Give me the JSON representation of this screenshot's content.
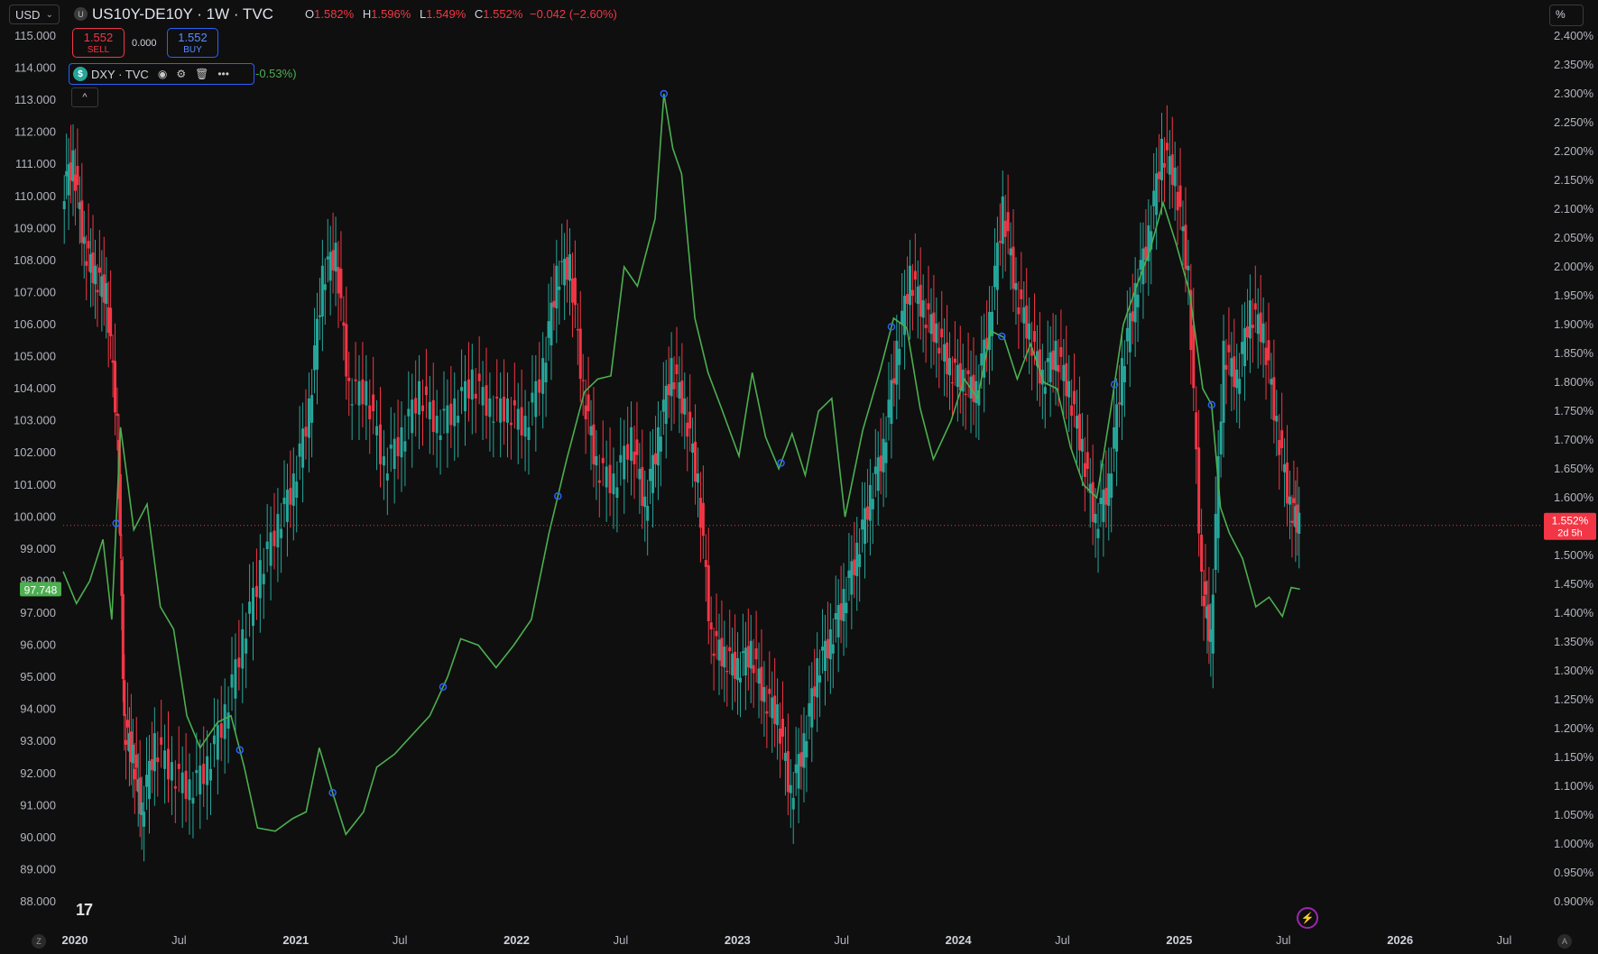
{
  "toolbar": {
    "currency": "USD",
    "scale_mode": "%"
  },
  "symbol": {
    "logo_letter": "U",
    "title": "US10Y-DE10Y · 1W · TVC",
    "ohlc": {
      "o_label": "O",
      "o": "1.582%",
      "h_label": "H",
      "h": "1.596%",
      "l_label": "L",
      "l": "1.549%",
      "c_label": "C",
      "c": "1.552%",
      "change": "−0.042 (−2.60%)"
    }
  },
  "trade": {
    "sell_price": "1.552",
    "sell_label": "SELL",
    "spread": "0.000",
    "buy_price": "1.552",
    "buy_label": "BUY"
  },
  "overlay_legend": {
    "icon": "$",
    "name": "DXY · TVC",
    "change_tail": "-0.53%)"
  },
  "bottom": {
    "z_label": "Z",
    "a_label": "A"
  },
  "colors": {
    "up": "#26a69a",
    "down": "#f23645",
    "dxy_line": "#4caf50",
    "bg": "#0f0f0f",
    "marker": "#2962ff"
  },
  "chart_data": {
    "type": "candlestick+line",
    "left_axis": {
      "ticks": [
        "115.000",
        "114.000",
        "113.000",
        "112.000",
        "111.000",
        "110.000",
        "109.000",
        "108.000",
        "107.000",
        "106.000",
        "105.000",
        "104.000",
        "103.000",
        "102.000",
        "101.000",
        "100.000",
        "99.000",
        "98.000",
        "97.000",
        "96.000",
        "95.000",
        "94.000",
        "93.000",
        "92.000",
        "91.000",
        "90.000",
        "89.000",
        "88.000"
      ],
      "range": [
        88,
        115
      ],
      "last_value_label": "97.748"
    },
    "right_axis": {
      "ticks": [
        "2.400%",
        "2.350%",
        "2.300%",
        "2.250%",
        "2.200%",
        "2.150%",
        "2.100%",
        "2.050%",
        "2.000%",
        "1.950%",
        "1.900%",
        "1.850%",
        "1.800%",
        "1.750%",
        "1.700%",
        "1.650%",
        "1.600%",
        "1.550%",
        "1.500%",
        "1.450%",
        "1.400%",
        "1.350%",
        "1.300%",
        "1.250%",
        "1.200%",
        "1.150%",
        "1.100%",
        "1.050%",
        "1.000%",
        "0.950%",
        "0.900%"
      ],
      "range": [
        0.9,
        2.4
      ],
      "last_value_label": "1.552%",
      "countdown": "2d 5h"
    },
    "x_axis": {
      "ticks": [
        "2020",
        "Jul",
        "2021",
        "Jul",
        "2022",
        "Jul",
        "2023",
        "Jul",
        "2024",
        "Jul",
        "2025",
        "Jul",
        "2026",
        "Jul"
      ],
      "start": 2020.0,
      "end": 2026.7
    },
    "last_price_line": 1.552,
    "series": [
      {
        "name": "US10Y-DE10Y",
        "kind": "candles",
        "points": [
          [
            2020.0,
            2.12
          ],
          [
            2020.05,
            2.18
          ],
          [
            2020.1,
            2.03
          ],
          [
            2020.15,
            1.98
          ],
          [
            2020.2,
            1.95
          ],
          [
            2020.25,
            1.72
          ],
          [
            2020.28,
            1.2
          ],
          [
            2020.32,
            1.15
          ],
          [
            2020.36,
            1.05
          ],
          [
            2020.42,
            1.17
          ],
          [
            2020.5,
            1.12
          ],
          [
            2020.58,
            1.09
          ],
          [
            2020.66,
            1.13
          ],
          [
            2020.74,
            1.22
          ],
          [
            2020.82,
            1.35
          ],
          [
            2020.9,
            1.47
          ],
          [
            2020.98,
            1.55
          ],
          [
            2021.05,
            1.62
          ],
          [
            2021.12,
            1.75
          ],
          [
            2021.18,
            1.98
          ],
          [
            2021.24,
            2.02
          ],
          [
            2021.3,
            1.78
          ],
          [
            2021.38,
            1.78
          ],
          [
            2021.46,
            1.65
          ],
          [
            2021.54,
            1.7
          ],
          [
            2021.62,
            1.78
          ],
          [
            2021.7,
            1.72
          ],
          [
            2021.78,
            1.75
          ],
          [
            2021.86,
            1.8
          ],
          [
            2021.94,
            1.75
          ],
          [
            2022.02,
            1.75
          ],
          [
            2022.1,
            1.72
          ],
          [
            2022.18,
            1.82
          ],
          [
            2022.24,
            1.98
          ],
          [
            2022.3,
            2.0
          ],
          [
            2022.36,
            1.78
          ],
          [
            2022.42,
            1.65
          ],
          [
            2022.5,
            1.62
          ],
          [
            2022.58,
            1.7
          ],
          [
            2022.64,
            1.58
          ],
          [
            2022.7,
            1.7
          ],
          [
            2022.76,
            1.82
          ],
          [
            2022.82,
            1.75
          ],
          [
            2022.88,
            1.62
          ],
          [
            2022.94,
            1.35
          ],
          [
            2023.0,
            1.32
          ],
          [
            2023.06,
            1.3
          ],
          [
            2023.12,
            1.33
          ],
          [
            2023.18,
            1.25
          ],
          [
            2023.24,
            1.22
          ],
          [
            2023.3,
            1.08
          ],
          [
            2023.36,
            1.17
          ],
          [
            2023.42,
            1.3
          ],
          [
            2023.48,
            1.35
          ],
          [
            2023.54,
            1.42
          ],
          [
            2023.6,
            1.5
          ],
          [
            2023.66,
            1.6
          ],
          [
            2023.72,
            1.68
          ],
          [
            2023.78,
            1.85
          ],
          [
            2023.84,
            1.98
          ],
          [
            2023.9,
            1.92
          ],
          [
            2023.96,
            1.88
          ],
          [
            2024.02,
            1.82
          ],
          [
            2024.08,
            1.8
          ],
          [
            2024.14,
            1.78
          ],
          [
            2024.2,
            1.9
          ],
          [
            2024.26,
            2.1
          ],
          [
            2024.32,
            1.95
          ],
          [
            2024.38,
            1.88
          ],
          [
            2024.44,
            1.8
          ],
          [
            2024.5,
            1.85
          ],
          [
            2024.56,
            1.78
          ],
          [
            2024.62,
            1.68
          ],
          [
            2024.68,
            1.55
          ],
          [
            2024.74,
            1.62
          ],
          [
            2024.8,
            1.82
          ],
          [
            2024.86,
            1.95
          ],
          [
            2024.92,
            2.05
          ],
          [
            2024.98,
            2.2
          ],
          [
            2025.04,
            2.15
          ],
          [
            2025.1,
            1.98
          ],
          [
            2025.16,
            1.45
          ],
          [
            2025.2,
            1.35
          ],
          [
            2025.26,
            1.85
          ],
          [
            2025.32,
            1.8
          ],
          [
            2025.38,
            1.92
          ],
          [
            2025.44,
            1.88
          ],
          [
            2025.5,
            1.72
          ],
          [
            2025.56,
            1.58
          ],
          [
            2025.6,
            1.552
          ]
        ]
      },
      {
        "name": "DXY",
        "kind": "line",
        "points": [
          [
            2020.0,
            98.3
          ],
          [
            2020.06,
            97.3
          ],
          [
            2020.12,
            98.0
          ],
          [
            2020.18,
            99.3
          ],
          [
            2020.22,
            96.8
          ],
          [
            2020.26,
            102.8
          ],
          [
            2020.32,
            99.6
          ],
          [
            2020.38,
            100.4
          ],
          [
            2020.44,
            97.2
          ],
          [
            2020.5,
            96.5
          ],
          [
            2020.56,
            93.8
          ],
          [
            2020.62,
            92.8
          ],
          [
            2020.7,
            93.6
          ],
          [
            2020.76,
            93.8
          ],
          [
            2020.82,
            92.2
          ],
          [
            2020.88,
            90.3
          ],
          [
            2020.96,
            90.2
          ],
          [
            2021.04,
            90.6
          ],
          [
            2021.1,
            90.8
          ],
          [
            2021.16,
            92.8
          ],
          [
            2021.22,
            91.4
          ],
          [
            2021.28,
            90.1
          ],
          [
            2021.36,
            90.8
          ],
          [
            2021.42,
            92.2
          ],
          [
            2021.5,
            92.6
          ],
          [
            2021.58,
            93.2
          ],
          [
            2021.66,
            93.8
          ],
          [
            2021.74,
            95.0
          ],
          [
            2021.8,
            96.2
          ],
          [
            2021.88,
            96.0
          ],
          [
            2021.96,
            95.3
          ],
          [
            2022.04,
            96.0
          ],
          [
            2022.12,
            96.8
          ],
          [
            2022.2,
            99.5
          ],
          [
            2022.28,
            101.8
          ],
          [
            2022.36,
            103.9
          ],
          [
            2022.42,
            104.3
          ],
          [
            2022.48,
            104.4
          ],
          [
            2022.54,
            107.8
          ],
          [
            2022.6,
            107.2
          ],
          [
            2022.68,
            109.3
          ],
          [
            2022.72,
            113.2
          ],
          [
            2022.76,
            111.5
          ],
          [
            2022.8,
            110.7
          ],
          [
            2022.86,
            106.2
          ],
          [
            2022.92,
            104.5
          ],
          [
            2022.98,
            103.4
          ],
          [
            2023.06,
            101.9
          ],
          [
            2023.12,
            104.5
          ],
          [
            2023.18,
            102.5
          ],
          [
            2023.24,
            101.5
          ],
          [
            2023.3,
            102.6
          ],
          [
            2023.36,
            101.3
          ],
          [
            2023.42,
            103.3
          ],
          [
            2023.48,
            103.7
          ],
          [
            2023.54,
            100.0
          ],
          [
            2023.62,
            102.7
          ],
          [
            2023.7,
            104.6
          ],
          [
            2023.76,
            106.2
          ],
          [
            2023.82,
            105.9
          ],
          [
            2023.88,
            103.4
          ],
          [
            2023.94,
            101.8
          ],
          [
            2024.02,
            103.0
          ],
          [
            2024.08,
            104.3
          ],
          [
            2024.14,
            103.7
          ],
          [
            2024.2,
            105.8
          ],
          [
            2024.26,
            105.6
          ],
          [
            2024.32,
            104.3
          ],
          [
            2024.38,
            105.4
          ],
          [
            2024.44,
            104.2
          ],
          [
            2024.5,
            104.0
          ],
          [
            2024.56,
            102.2
          ],
          [
            2024.62,
            101.0
          ],
          [
            2024.68,
            100.6
          ],
          [
            2024.74,
            103.2
          ],
          [
            2024.8,
            106.0
          ],
          [
            2024.86,
            107.2
          ],
          [
            2024.92,
            108.3
          ],
          [
            2024.98,
            109.8
          ],
          [
            2025.04,
            108.5
          ],
          [
            2025.1,
            107.0
          ],
          [
            2025.16,
            104.0
          ],
          [
            2025.2,
            103.5
          ],
          [
            2025.24,
            100.3
          ],
          [
            2025.28,
            99.5
          ],
          [
            2025.34,
            98.7
          ],
          [
            2025.4,
            97.2
          ],
          [
            2025.46,
            97.5
          ],
          [
            2025.52,
            96.9
          ],
          [
            2025.56,
            97.8
          ],
          [
            2025.6,
            97.748
          ]
        ]
      }
    ],
    "markers": [
      2020.24,
      2020.8,
      2021.22,
      2021.72,
      2022.24,
      2022.72,
      2023.25,
      2023.75,
      2024.25,
      2024.76,
      2025.2
    ]
  }
}
